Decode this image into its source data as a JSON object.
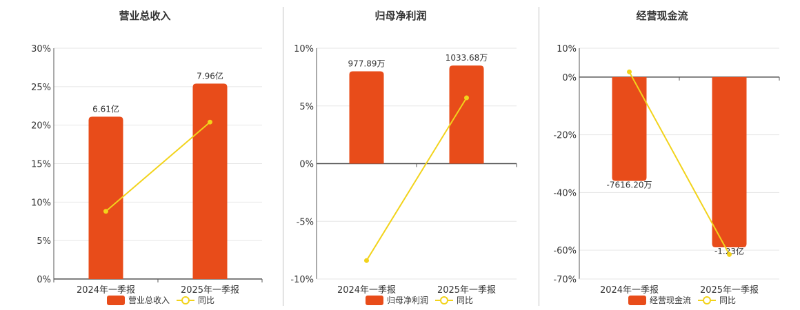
{
  "colors": {
    "bar": "#e84c1a",
    "line": "#f2d31b",
    "grid": "#e6e6e6",
    "axis": "#555555",
    "divider": "#bfbfbf"
  },
  "chart_data": [
    {
      "type": "bar",
      "title": "营业总收入",
      "categories": [
        "2024年一季报",
        "2025年一季报"
      ],
      "ylim": [
        0,
        30
      ],
      "yticks": [
        "0%",
        "5%",
        "10%",
        "15%",
        "20%",
        "25%",
        "30%"
      ],
      "yticks_values": [
        0,
        5,
        10,
        15,
        20,
        25,
        30
      ],
      "series": [
        {
          "name": "营业总收入",
          "type": "bar",
          "values": [
            21.1,
            25.4
          ],
          "labels": [
            "6.61亿",
            "7.96亿"
          ]
        },
        {
          "name": "同比",
          "type": "line",
          "values": [
            8.8,
            20.4
          ]
        }
      ],
      "legend": [
        "营业总收入",
        "同比"
      ]
    },
    {
      "type": "bar",
      "title": "归母净利润",
      "categories": [
        "2024年一季报",
        "2025年一季报"
      ],
      "ylim": [
        -10,
        10
      ],
      "yticks": [
        "-10%",
        "-5%",
        "0%",
        "5%",
        "10%"
      ],
      "yticks_values": [
        -10,
        -5,
        0,
        5,
        10
      ],
      "series": [
        {
          "name": "归母净利润",
          "type": "bar",
          "values": [
            8.0,
            8.5
          ],
          "labels": [
            "977.89万",
            "1033.68万"
          ]
        },
        {
          "name": "同比",
          "type": "line",
          "values": [
            -8.4,
            5.7
          ]
        }
      ],
      "legend": [
        "归母净利润",
        "同比"
      ]
    },
    {
      "type": "bar",
      "title": "经营现金流",
      "categories": [
        "2024年一季报",
        "2025年一季报"
      ],
      "ylim": [
        -70,
        10
      ],
      "yticks": [
        "-70%",
        "-60%",
        "-40%",
        "-20%",
        "0%",
        "10%"
      ],
      "yticks_values": [
        -70,
        -60,
        -40,
        -20,
        0,
        10
      ],
      "series": [
        {
          "name": "经营现金流",
          "type": "bar",
          "values": [
            -36.0,
            -59.0
          ],
          "labels": [
            "-7616.20万",
            "-1.23亿"
          ]
        },
        {
          "name": "同比",
          "type": "line",
          "values": [
            1.8,
            -61.5
          ]
        }
      ],
      "legend": [
        "经营现金流",
        "同比"
      ]
    }
  ]
}
